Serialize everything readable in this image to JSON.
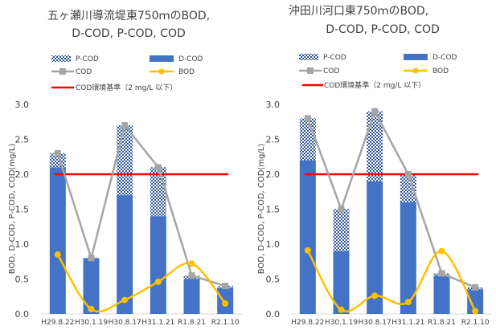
{
  "chart_data": [
    {
      "type": "bar",
      "title_line1": "五ヶ瀬川導流堤東750ｍのBOD,",
      "title_line2": "D-COD, P-COD, COD",
      "categories": [
        "H29.8.22",
        "H30.1.19",
        "H30.8.17",
        "H31.1.21",
        "R1.8.21",
        "R2.1.10"
      ],
      "ylabel": "BOD, D-COD, P-COD, COD(mg/L)",
      "ylim": [
        0,
        3.0
      ],
      "yticks": [
        "0.0",
        "0.5",
        "1.0",
        "1.5",
        "2.0",
        "2.5",
        "3.0"
      ],
      "series": [
        {
          "name": "D-COD",
          "values": [
            2.1,
            0.8,
            1.7,
            1.4,
            0.5,
            0.37
          ]
        },
        {
          "name": "P-COD",
          "values": [
            0.2,
            0.0,
            1.0,
            0.7,
            0.05,
            0.03
          ]
        },
        {
          "name": "COD",
          "values": [
            2.3,
            0.8,
            2.7,
            2.1,
            0.55,
            0.4
          ]
        },
        {
          "name": "BOD",
          "values": [
            0.85,
            0.07,
            0.2,
            0.46,
            0.72,
            0.15
          ]
        }
      ],
      "standard": {
        "label": "COD環境基準（2 mg/L 以下）",
        "value": 2.0
      },
      "legend": {
        "p_cod": "P-COD",
        "d_cod": "D-COD",
        "cod": "COD",
        "bod": "BOD",
        "standard": "COD環境基準（2 mg/L 以下）"
      }
    },
    {
      "type": "bar",
      "title_line1": "沖田川河口東750ｍのBOD,",
      "title_line2": "D-COD, P-COD, COD",
      "categories": [
        "H29.8.22",
        "H30.1.19",
        "H30.8.17",
        "H31.1.21",
        "R1.8.21",
        "R2.1.10"
      ],
      "ylabel": "BOD, D-COD, P-COD, COD(mg/L)",
      "ylim": [
        0,
        3.0
      ],
      "yticks": [
        "0.0",
        "0.5",
        "1.0",
        "1.5",
        "2.0",
        "2.5",
        "3.0"
      ],
      "series": [
        {
          "name": "D-COD",
          "values": [
            2.2,
            0.9,
            1.9,
            1.6,
            0.55,
            0.35
          ]
        },
        {
          "name": "P-COD",
          "values": [
            0.6,
            0.6,
            1.0,
            0.4,
            0.03,
            0.03
          ]
        },
        {
          "name": "COD",
          "values": [
            2.8,
            1.5,
            2.9,
            2.0,
            0.58,
            0.38
          ]
        },
        {
          "name": "BOD",
          "values": [
            0.91,
            0.06,
            0.26,
            0.17,
            0.9,
            0.04
          ]
        }
      ],
      "standard": {
        "label": "COD環境基準（2 mg/L 以下）",
        "value": 2.0
      },
      "legend": {
        "p_cod": "P-COD",
        "d_cod": "D-COD",
        "cod": "COD",
        "bod": "BOD",
        "standard": "COD環境基準（2 mg/L 以下）"
      }
    }
  ],
  "colors": {
    "d_cod": "#4472C4",
    "p_cod_pattern": "#2F5597",
    "cod": "#A5A5A5",
    "bod": "#FFC000",
    "standard": "#FF0000"
  }
}
